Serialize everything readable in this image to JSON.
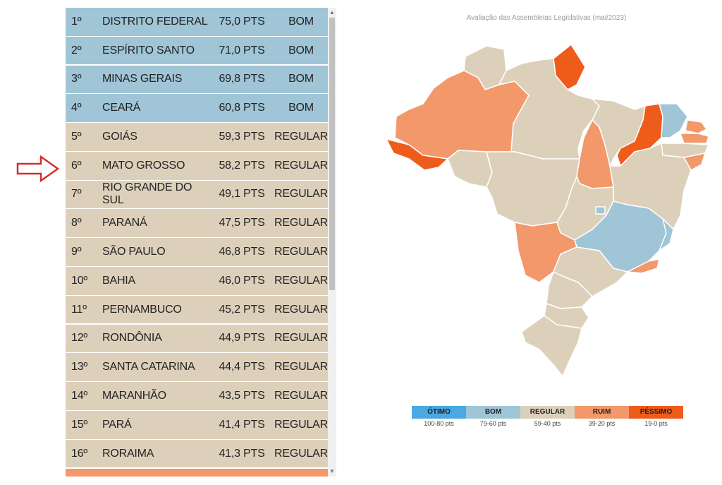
{
  "colors": {
    "otimo": "#4aa9e0",
    "bom": "#9fc5d6",
    "regular": "#ddd0bb",
    "ruim": "#f2986b",
    "pessimo": "#ee5c1c",
    "arrow": "#d62b2b"
  },
  "ranking": [
    {
      "rank": "1º",
      "state": "DISTRITO FEDERAL",
      "points": "75,0 PTS",
      "class": "BOM",
      "tier": "bom"
    },
    {
      "rank": "2º",
      "state": "ESPÍRITO SANTO",
      "points": "71,0 PTS",
      "class": "BOM",
      "tier": "bom"
    },
    {
      "rank": "3º",
      "state": "MINAS GERAIS",
      "points": "69,8 PTS",
      "class": "BOM",
      "tier": "bom"
    },
    {
      "rank": "4º",
      "state": "CEARÁ",
      "points": "60,8 PTS",
      "class": "BOM",
      "tier": "bom"
    },
    {
      "rank": "5º",
      "state": "GOIÁS",
      "points": "59,3 PTS",
      "class": "REGULAR",
      "tier": "regular"
    },
    {
      "rank": "6º",
      "state": "MATO GROSSO",
      "points": "58,2 PTS",
      "class": "REGULAR",
      "tier": "regular"
    },
    {
      "rank": "7º",
      "state": "RIO GRANDE DO SUL",
      "points": "49,1 PTS",
      "class": "REGULAR",
      "tier": "regular"
    },
    {
      "rank": "8º",
      "state": "PARANÁ",
      "points": "47,5 PTS",
      "class": "REGULAR",
      "tier": "regular"
    },
    {
      "rank": "9º",
      "state": "SÃO PAULO",
      "points": "46,8 PTS",
      "class": "REGULAR",
      "tier": "regular"
    },
    {
      "rank": "10º",
      "state": "BAHIA",
      "points": "46,0 PTS",
      "class": "REGULAR",
      "tier": "regular"
    },
    {
      "rank": "11º",
      "state": "PERNAMBUCO",
      "points": "45,2 PTS",
      "class": "REGULAR",
      "tier": "regular"
    },
    {
      "rank": "12º",
      "state": "RONDÔNIA",
      "points": "44,9 PTS",
      "class": "REGULAR",
      "tier": "regular"
    },
    {
      "rank": "13º",
      "state": "SANTA CATARINA",
      "points": "44,4 PTS",
      "class": "REGULAR",
      "tier": "regular"
    },
    {
      "rank": "14º",
      "state": "MARANHÃO",
      "points": "43,5 PTS",
      "class": "REGULAR",
      "tier": "regular"
    },
    {
      "rank": "15º",
      "state": "PARÁ",
      "points": "41,4 PTS",
      "class": "REGULAR",
      "tier": "regular"
    },
    {
      "rank": "16º",
      "state": "RORAIMA",
      "points": "41,3 PTS",
      "class": "REGULAR",
      "tier": "regular"
    }
  ],
  "map": {
    "title": "Avaliação das Assembleias Legislativas (mai/2023)"
  },
  "legend": [
    {
      "label": "ÓTIMO",
      "range": "100-80 pts",
      "tier": "otimo"
    },
    {
      "label": "BOM",
      "range": "79-60 pts",
      "tier": "bom"
    },
    {
      "label": "REGULAR",
      "range": "59-40 pts",
      "tier": "regular"
    },
    {
      "label": "RUIM",
      "range": "39-20 pts",
      "tier": "ruim"
    },
    {
      "label": "PÉSSIMO",
      "range": "19-0 pts",
      "tier": "pessimo"
    }
  ]
}
